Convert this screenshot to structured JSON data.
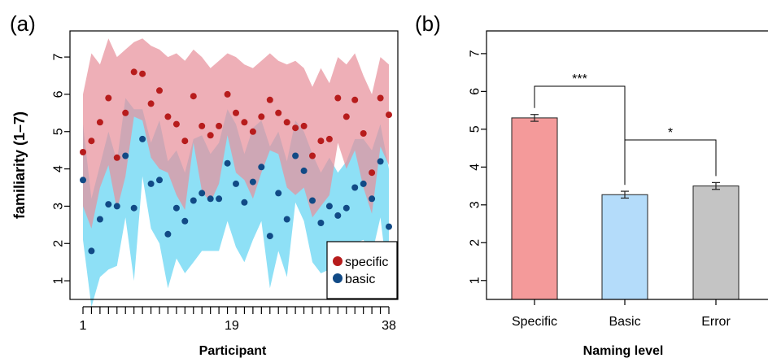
{
  "chart_data": [
    {
      "panel_label": "(a)",
      "type": "scatter",
      "xlabel": "Participant",
      "ylabel": "familiarity (1–7)",
      "xlim": [
        1,
        38
      ],
      "ylim": [
        0.5,
        7.7
      ],
      "x_tick_labels": [
        "1",
        "19",
        "38"
      ],
      "y_tick_labels": [
        "1",
        "2",
        "3",
        "4",
        "5",
        "6",
        "7"
      ],
      "legend_position": "bottom-right",
      "series": [
        {
          "name": "specific",
          "color": "#b71c1c",
          "band_color": "#e8909b",
          "values": [
            4.45,
            4.75,
            5.25,
            5.9,
            4.3,
            5.5,
            6.6,
            6.55,
            5.75,
            6.1,
            5.4,
            5.2,
            4.75,
            5.95,
            5.15,
            4.9,
            5.15,
            6.0,
            5.5,
            5.25,
            5.0,
            5.4,
            5.85,
            5.5,
            5.25,
            5.1,
            5.15,
            4.35,
            4.75,
            4.8,
            5.9,
            5.4,
            5.85,
            4.95,
            3.9,
            5.9,
            5.45
          ],
          "band_upper": [
            6.0,
            7.1,
            6.8,
            7.5,
            7.0,
            7.2,
            7.4,
            7.5,
            7.3,
            7.2,
            7.0,
            7.1,
            6.9,
            7.2,
            7.0,
            6.7,
            6.9,
            7.1,
            7.0,
            6.8,
            6.7,
            6.9,
            7.1,
            6.9,
            6.8,
            6.9,
            6.7,
            6.2,
            6.7,
            6.3,
            7.0,
            6.8,
            7.1,
            6.5,
            6.0,
            7.0,
            6.8
          ],
          "band_lower": [
            3.0,
            2.4,
            3.5,
            4.1,
            2.9,
            3.8,
            5.4,
            5.3,
            4.3,
            4.0,
            3.9,
            3.3,
            2.9,
            4.7,
            3.4,
            3.1,
            3.6,
            4.9,
            3.9,
            3.7,
            3.2,
            3.9,
            4.5,
            4.4,
            3.5,
            3.3,
            3.5,
            2.7,
            3.0,
            3.3,
            4.7,
            4.0,
            4.5,
            3.5,
            2.8,
            4.6,
            4.1
          ]
        },
        {
          "name": "basic",
          "color": "#114a86",
          "band_color": "#8ee0f6",
          "values": [
            3.7,
            1.8,
            2.65,
            3.05,
            3.0,
            4.35,
            2.95,
            4.8,
            3.6,
            3.7,
            2.25,
            2.95,
            2.6,
            3.15,
            3.35,
            3.2,
            3.2,
            4.15,
            3.6,
            3.1,
            3.65,
            4.05,
            2.2,
            3.35,
            2.65,
            4.35,
            3.95,
            3.15,
            2.55,
            3.0,
            2.75,
            2.95,
            3.5,
            3.6,
            3.2,
            4.2,
            2.45
          ],
          "band_upper": [
            5.2,
            3.2,
            4.1,
            5.0,
            4.2,
            5.9,
            5.6,
            5.6,
            4.7,
            5.3,
            4.2,
            4.5,
            3.9,
            4.8,
            4.9,
            4.4,
            4.7,
            5.6,
            5.2,
            4.4,
            5.1,
            5.3,
            4.6,
            5.0,
            4.2,
            5.3,
            5.0,
            4.4,
            3.9,
            4.3,
            3.9,
            4.2,
            4.8,
            4.8,
            4.5,
            5.2,
            4.0
          ],
          "band_lower": [
            2.1,
            0.3,
            1.1,
            1.3,
            1.4,
            2.7,
            1.0,
            3.8,
            2.4,
            2.0,
            0.8,
            1.6,
            1.2,
            1.5,
            1.8,
            1.8,
            1.8,
            2.6,
            1.9,
            1.5,
            2.1,
            2.6,
            0.8,
            1.8,
            1.1,
            3.1,
            2.6,
            1.5,
            1.2,
            1.3,
            1.1,
            1.3,
            2.0,
            2.1,
            1.7,
            2.7,
            0.8
          ]
        }
      ]
    },
    {
      "panel_label": "(b)",
      "type": "bar",
      "xlabel": "Naming level",
      "ylabel": "",
      "ylim": [
        0.5,
        7.6
      ],
      "y_tick_labels": [
        "1",
        "2",
        "3",
        "4",
        "5",
        "6",
        "7"
      ],
      "categories": [
        "Specific",
        "Basic",
        "Error"
      ],
      "values": [
        5.3,
        3.27,
        3.5
      ],
      "errors": [
        0.09,
        0.09,
        0.09
      ],
      "bar_colors": [
        "#f49a9a",
        "#b4dcfa",
        "#c4c4c4"
      ],
      "significance": [
        {
          "from": 0,
          "to": 1,
          "label": "***"
        },
        {
          "from": 1,
          "to": 2,
          "label": "*"
        }
      ]
    }
  ]
}
